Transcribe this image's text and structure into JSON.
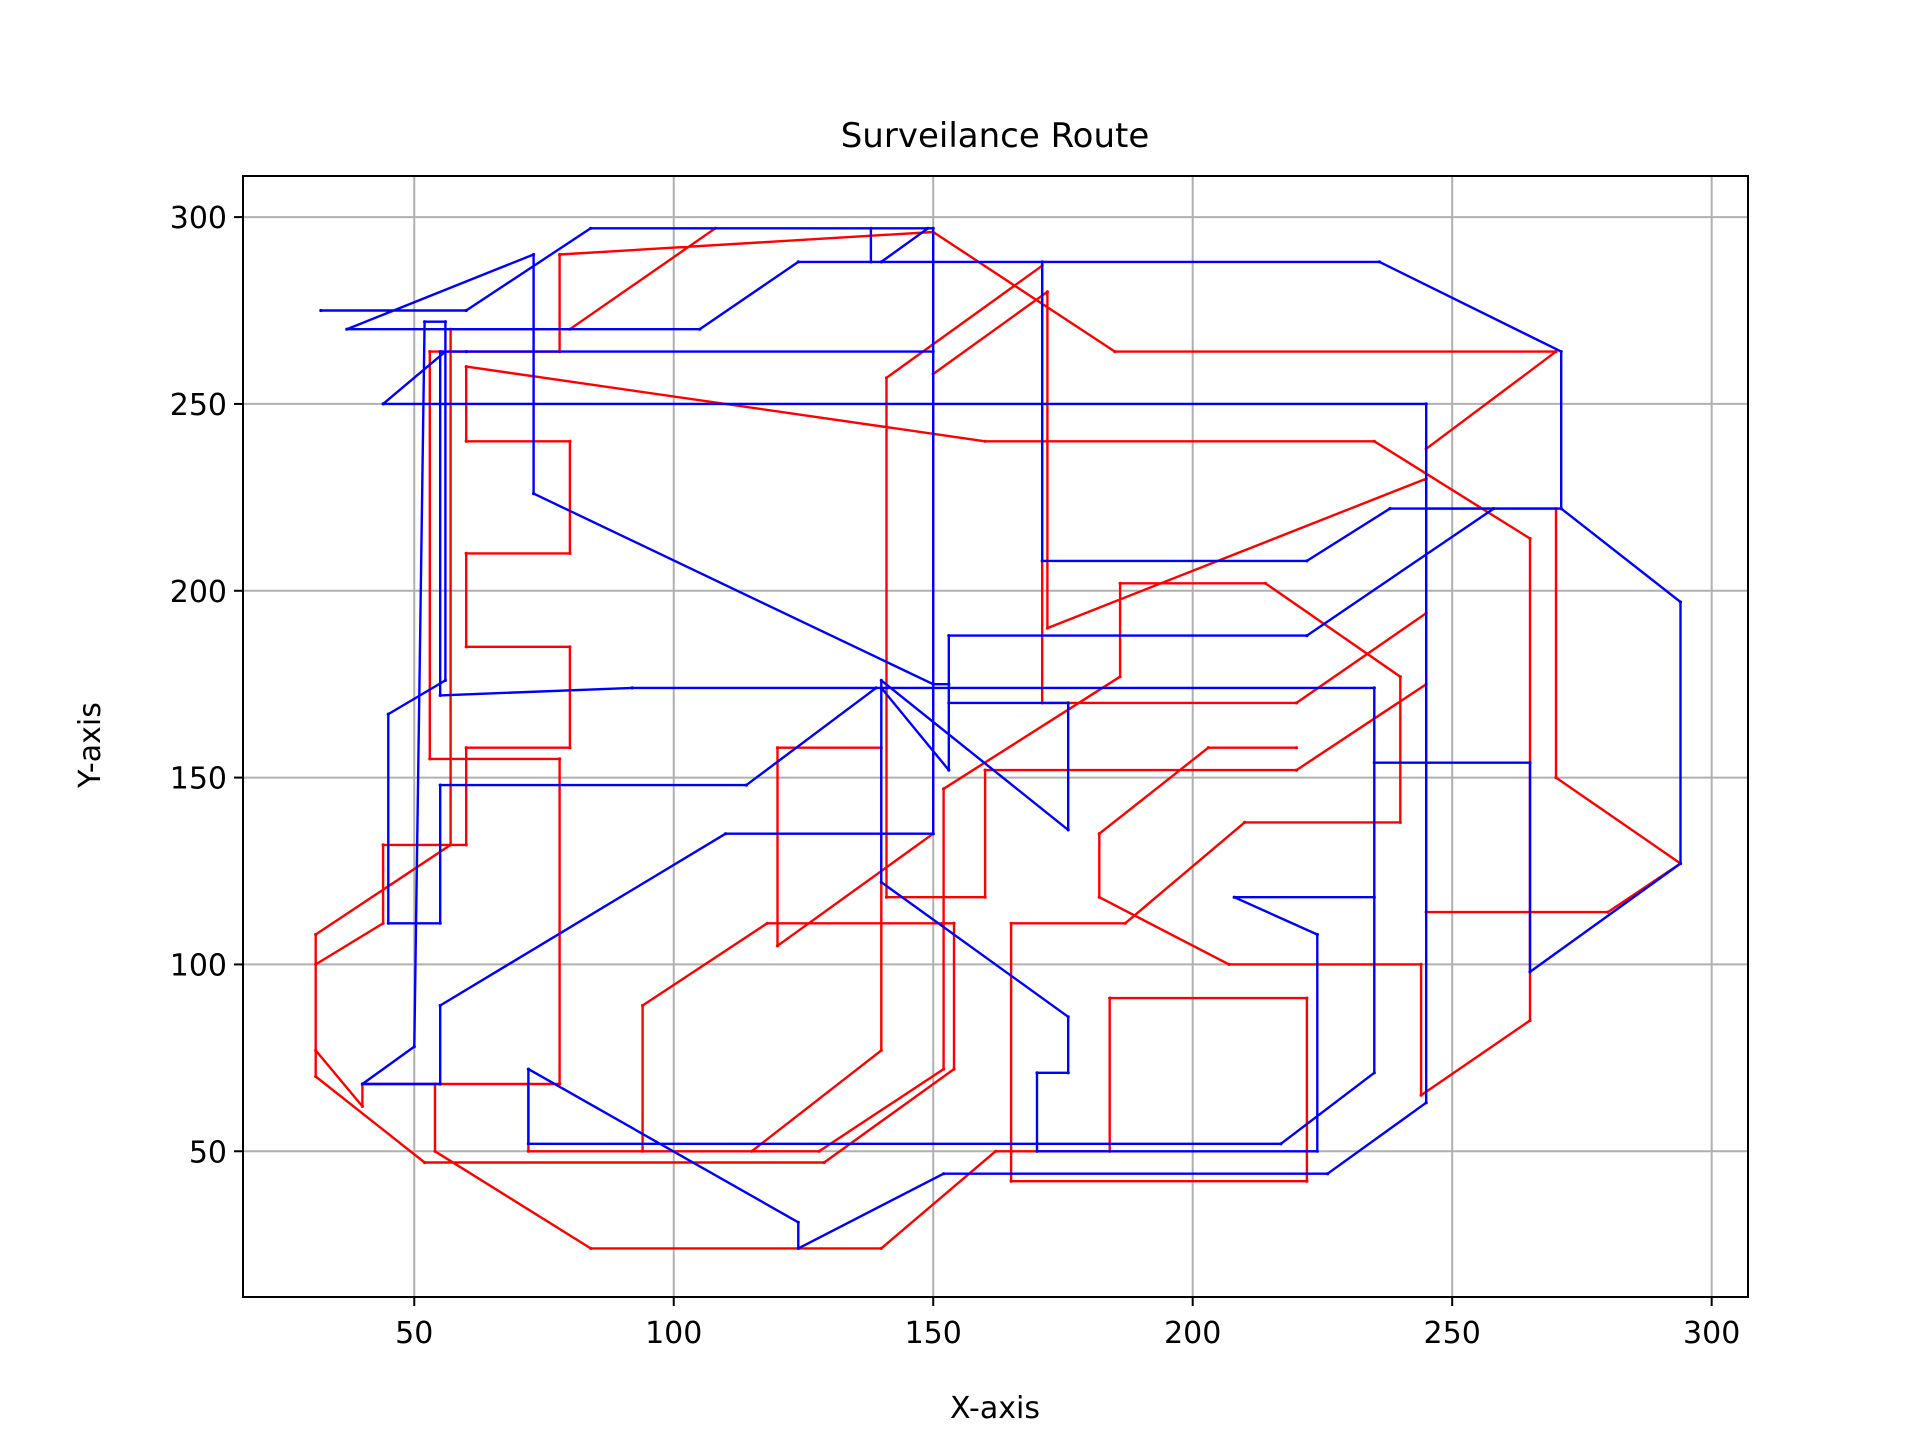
{
  "chart_data": {
    "type": "line",
    "title": "Surveilance Route",
    "xlabel": "X-axis",
    "ylabel": "Y-axis",
    "xlim": [
      17,
      307
    ],
    "ylim": [
      11,
      311
    ],
    "xticks": [
      50,
      100,
      150,
      200,
      250,
      300
    ],
    "yticks": [
      50,
      100,
      150,
      200,
      250,
      300
    ],
    "grid": true,
    "series": [
      {
        "color": "#ff0000",
        "points": [
          [
            108,
            297
          ],
          [
            80,
            270
          ],
          [
            57,
            270
          ],
          [
            57,
            132
          ],
          [
            31,
            108
          ],
          [
            31,
            70
          ],
          [
            52,
            47
          ],
          [
            129,
            47
          ],
          [
            154,
            72
          ],
          [
            154,
            111
          ],
          [
            118,
            111
          ],
          [
            94,
            89
          ],
          [
            94,
            50
          ],
          [
            128,
            50
          ],
          [
            152,
            72
          ],
          [
            152,
            147
          ],
          [
            186,
            177
          ],
          [
            186,
            202
          ],
          [
            214,
            202
          ],
          [
            240,
            177
          ],
          [
            240,
            138
          ],
          [
            210,
            138
          ],
          [
            187,
            111
          ],
          [
            165,
            111
          ],
          [
            165,
            42
          ],
          [
            222,
            42
          ],
          [
            222,
            91
          ],
          [
            184,
            91
          ],
          [
            184,
            50
          ],
          [
            162,
            50
          ],
          [
            140,
            24
          ],
          [
            84,
            24
          ],
          [
            54,
            50
          ],
          [
            54,
            68
          ],
          [
            78,
            68
          ],
          [
            78,
            155
          ],
          [
            53,
            155
          ],
          [
            53,
            264
          ],
          [
            78,
            264
          ],
          [
            78,
            290
          ],
          [
            150,
            296
          ],
          [
            185,
            264
          ],
          [
            270,
            264
          ],
          [
            245,
            238
          ],
          [
            245,
            114
          ],
          [
            280,
            114
          ],
          [
            294,
            127
          ],
          [
            270,
            150
          ],
          [
            270,
            222
          ],
          [
            245,
            222
          ],
          [
            245,
            194
          ],
          [
            220,
            170
          ],
          [
            171,
            170
          ],
          [
            171,
            287
          ],
          [
            141,
            257
          ],
          [
            141,
            118
          ],
          [
            160,
            118
          ],
          [
            160,
            152
          ],
          [
            220,
            152
          ],
          [
            245,
            175
          ],
          [
            245,
            230
          ],
          [
            172,
            190
          ],
          [
            172,
            280
          ],
          [
            150,
            258
          ],
          [
            150,
            135
          ],
          [
            120,
            105
          ],
          [
            120,
            158
          ],
          [
            140,
            158
          ],
          [
            140,
            77
          ],
          [
            115,
            50
          ],
          [
            72,
            50
          ],
          [
            72,
            68
          ],
          [
            40,
            68
          ],
          [
            40,
            62
          ],
          [
            31,
            77
          ],
          [
            31,
            100
          ],
          [
            44,
            111
          ],
          [
            44,
            132
          ],
          [
            60,
            132
          ],
          [
            60,
            158
          ],
          [
            80,
            158
          ],
          [
            80,
            185
          ],
          [
            60,
            185
          ],
          [
            60,
            210
          ],
          [
            80,
            210
          ],
          [
            80,
            240
          ],
          [
            60,
            240
          ],
          [
            60,
            260
          ],
          [
            160,
            240
          ],
          [
            235,
            240
          ],
          [
            265,
            214
          ],
          [
            265,
            85
          ],
          [
            244,
            65
          ],
          [
            244,
            100
          ],
          [
            207,
            100
          ],
          [
            182,
            118
          ],
          [
            182,
            135
          ],
          [
            203,
            158
          ],
          [
            220,
            158
          ]
        ]
      },
      {
        "color": "#0000ff",
        "points": [
          [
            32,
            275
          ],
          [
            60,
            275
          ],
          [
            84,
            297
          ],
          [
            149,
            297
          ],
          [
            140,
            288
          ],
          [
            236,
            288
          ],
          [
            271,
            264
          ],
          [
            271,
            222
          ],
          [
            238,
            222
          ],
          [
            222,
            208
          ],
          [
            171,
            208
          ],
          [
            171,
            288
          ],
          [
            124,
            288
          ],
          [
            105,
            270
          ],
          [
            37,
            270
          ],
          [
            73,
            290
          ],
          [
            73,
            226
          ],
          [
            150,
            175
          ],
          [
            153,
            175
          ],
          [
            153,
            170
          ],
          [
            176,
            170
          ],
          [
            176,
            136
          ],
          [
            140,
            176
          ],
          [
            140,
            122
          ],
          [
            176,
            86
          ],
          [
            176,
            71
          ],
          [
            170,
            71
          ],
          [
            170,
            50
          ],
          [
            224,
            50
          ],
          [
            224,
            108
          ],
          [
            208,
            118
          ],
          [
            235,
            118
          ],
          [
            235,
            174
          ],
          [
            139,
            174
          ],
          [
            114,
            148
          ],
          [
            55,
            148
          ],
          [
            55,
            111
          ],
          [
            45,
            111
          ],
          [
            45,
            167
          ],
          [
            56,
            176
          ],
          [
            56,
            272
          ],
          [
            52,
            272
          ],
          [
            50,
            78
          ],
          [
            40,
            68
          ],
          [
            55,
            68
          ],
          [
            55,
            89
          ],
          [
            110,
            135
          ],
          [
            150,
            135
          ],
          [
            150,
            297
          ],
          [
            138,
            297
          ],
          [
            138,
            288
          ],
          [
            150,
            288
          ],
          [
            150,
            264
          ],
          [
            56,
            264
          ],
          [
            44,
            250
          ],
          [
            245,
            250
          ],
          [
            245,
            63
          ],
          [
            226,
            44
          ],
          [
            152,
            44
          ],
          [
            124,
            24
          ],
          [
            124,
            31
          ],
          [
            72,
            72
          ],
          [
            72,
            52
          ],
          [
            217,
            52
          ],
          [
            235,
            71
          ],
          [
            235,
            154
          ],
          [
            265,
            154
          ],
          [
            265,
            98
          ],
          [
            294,
            127
          ],
          [
            294,
            197
          ],
          [
            271,
            222
          ],
          [
            258,
            222
          ],
          [
            222,
            188
          ],
          [
            153,
            188
          ],
          [
            153,
            152
          ],
          [
            140,
            174
          ],
          [
            92,
            174
          ],
          [
            55,
            172
          ],
          [
            55,
            264
          ],
          [
            60,
            264
          ]
        ]
      }
    ]
  }
}
